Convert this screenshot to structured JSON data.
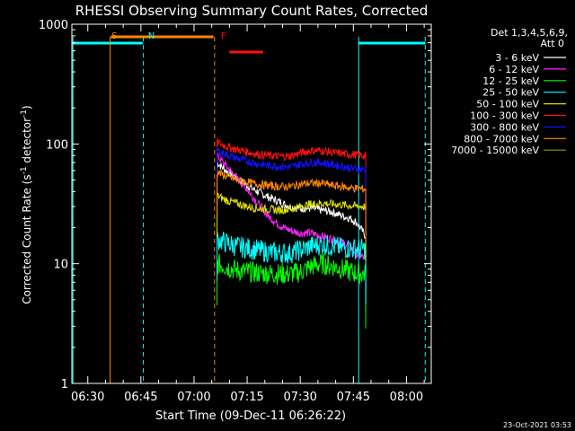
{
  "chart_data": {
    "type": "line",
    "title": "RHESSI Observing Summary Count Rates, Corrected",
    "xlabel": "Start Time (09-Dec-11 06:26:22)",
    "ylabel_main": "Corrected Count Rate (s",
    "ylabel_sup1": "-1",
    "ylabel_mid": " detector",
    "ylabel_sup2": "-1",
    "ylabel_end": ")",
    "yscale": "log",
    "ylim": [
      1,
      1000
    ],
    "xlim_minutes": [
      385.5,
      487
    ],
    "x_ticks": [
      {
        "t": 390,
        "label": "06:30"
      },
      {
        "t": 405,
        "label": "06:45"
      },
      {
        "t": 420,
        "label": "07:00"
      },
      {
        "t": 435,
        "label": "07:15"
      },
      {
        "t": 450,
        "label": "07:30"
      },
      {
        "t": 465,
        "label": "07:45"
      },
      {
        "t": 480,
        "label": "08:00"
      }
    ],
    "y_ticks": [
      {
        "v": 1,
        "label": "1"
      },
      {
        "v": 10,
        "label": "10"
      },
      {
        "v": 100,
        "label": "100"
      },
      {
        "v": 1000,
        "label": "1000"
      }
    ],
    "legend_header": [
      "Det 1,3,4,5,6,9,",
      "Att 0"
    ],
    "legend_placement": "right",
    "series": [
      {
        "name": "3 - 6 keV",
        "color": "#ffffff",
        "x": [
          426.5,
          429,
          432,
          435,
          438,
          441,
          444,
          447,
          450,
          453,
          456,
          459,
          462,
          464,
          466,
          468.5
        ],
        "values": [
          70,
          60,
          52,
          45,
          40,
          36,
          33,
          30,
          29,
          29,
          28,
          27,
          25,
          24,
          22,
          17
        ]
      },
      {
        "name": "6 - 12 keV",
        "color": "#ff22ff",
        "x": [
          426.5,
          429,
          432,
          435,
          438,
          441,
          444,
          447,
          450,
          453,
          456,
          459,
          462,
          464,
          466,
          468.5
        ],
        "values": [
          80,
          66,
          52,
          42,
          32,
          25,
          21,
          19,
          18,
          18,
          17,
          16,
          15,
          14,
          12,
          11
        ]
      },
      {
        "name": "12 - 25 keV",
        "color": "#00ff00",
        "x": [
          426.5,
          429,
          432,
          435,
          438,
          441,
          444,
          447,
          450,
          453,
          456,
          459,
          462,
          464,
          466,
          468.5
        ],
        "values": [
          10,
          9.5,
          8.8,
          8.6,
          8.4,
          8.3,
          8.2,
          8.2,
          8.5,
          9.5,
          10,
          9.6,
          9,
          8.6,
          8.3,
          8.2
        ]
      },
      {
        "name": "25 - 50 keV",
        "color": "#00ffff",
        "x": [
          426.5,
          429,
          432,
          435,
          438,
          441,
          444,
          447,
          450,
          453,
          456,
          459,
          462,
          464,
          466,
          468.5
        ],
        "values": [
          16,
          15,
          14,
          13.5,
          13,
          12.5,
          12.3,
          12.2,
          13,
          14,
          14.5,
          14,
          13.5,
          13.4,
          13.3,
          13.2
        ]
      },
      {
        "name": "50 - 100 keV",
        "color": "#dddd00",
        "x": [
          426.5,
          429,
          432,
          435,
          438,
          441,
          444,
          447,
          450,
          453,
          456,
          459,
          462,
          464,
          466,
          468.5
        ],
        "values": [
          37,
          34,
          32,
          30,
          29,
          28.5,
          28,
          28.5,
          30,
          31.5,
          32,
          31.5,
          31,
          30.5,
          30.2,
          30
        ]
      },
      {
        "name": "100 - 300 keV",
        "color": "#ff1111",
        "x": [
          426.5,
          429,
          432,
          435,
          438,
          441,
          444,
          447,
          450,
          453,
          456,
          459,
          462,
          464,
          466,
          468.5
        ],
        "values": [
          104,
          96,
          90,
          86,
          82,
          80,
          79,
          79,
          84,
          88,
          88,
          85,
          83,
          82,
          81,
          80
        ]
      },
      {
        "name": "300 - 800 keV",
        "color": "#1111ff",
        "x": [
          426.5,
          429,
          432,
          435,
          438,
          441,
          444,
          447,
          450,
          453,
          456,
          459,
          462,
          464,
          466,
          468.5
        ],
        "values": [
          89,
          82,
          76,
          72,
          68,
          66,
          65,
          64,
          68,
          70,
          70,
          67,
          65,
          63,
          62,
          61
        ]
      },
      {
        "name": "800 - 7000 keV",
        "color": "#ff8800",
        "x": [
          426.5,
          429,
          432,
          435,
          438,
          441,
          444,
          447,
          450,
          453,
          456,
          459,
          462,
          464,
          466,
          468.5
        ],
        "values": [
          58,
          54,
          50,
          48,
          46,
          45,
          44,
          44,
          46,
          47,
          47,
          45,
          44,
          43,
          42.5,
          42
        ]
      },
      {
        "name": "7000 - 15000 keV",
        "color": "#889911",
        "x": [],
        "values": []
      }
    ],
    "annotations": [
      {
        "text": "S",
        "color": "#ff8800",
        "t": 396.7,
        "bar": [
          396.5,
          425.5
        ]
      },
      {
        "text": "N",
        "color": "#00ffff",
        "t": 407
      },
      {
        "text": "F",
        "color": "#ff1111",
        "t": 427.6,
        "bar": [
          430,
          439.5
        ]
      }
    ],
    "state_lines": [
      {
        "kind": "solid",
        "color": "#00ffff",
        "t": 385.8
      },
      {
        "kind": "solid",
        "color": "#ff8800",
        "t": 396.3
      },
      {
        "kind": "dashed",
        "color": "#00ffff",
        "t": 405.7
      },
      {
        "kind": "dashed",
        "color": "#ff8800",
        "t": 425.8
      },
      {
        "kind": "solid",
        "color": "#00ffff",
        "t": 466.5
      },
      {
        "kind": "dashed",
        "color": "#00ffff",
        "t": 485.3
      }
    ],
    "night_bars": [
      [
        385.5,
        405.5
      ],
      [
        466.5,
        485.3
      ]
    ],
    "grid": false
  },
  "footer_timestamp": "23-Oct-2021 03:53"
}
